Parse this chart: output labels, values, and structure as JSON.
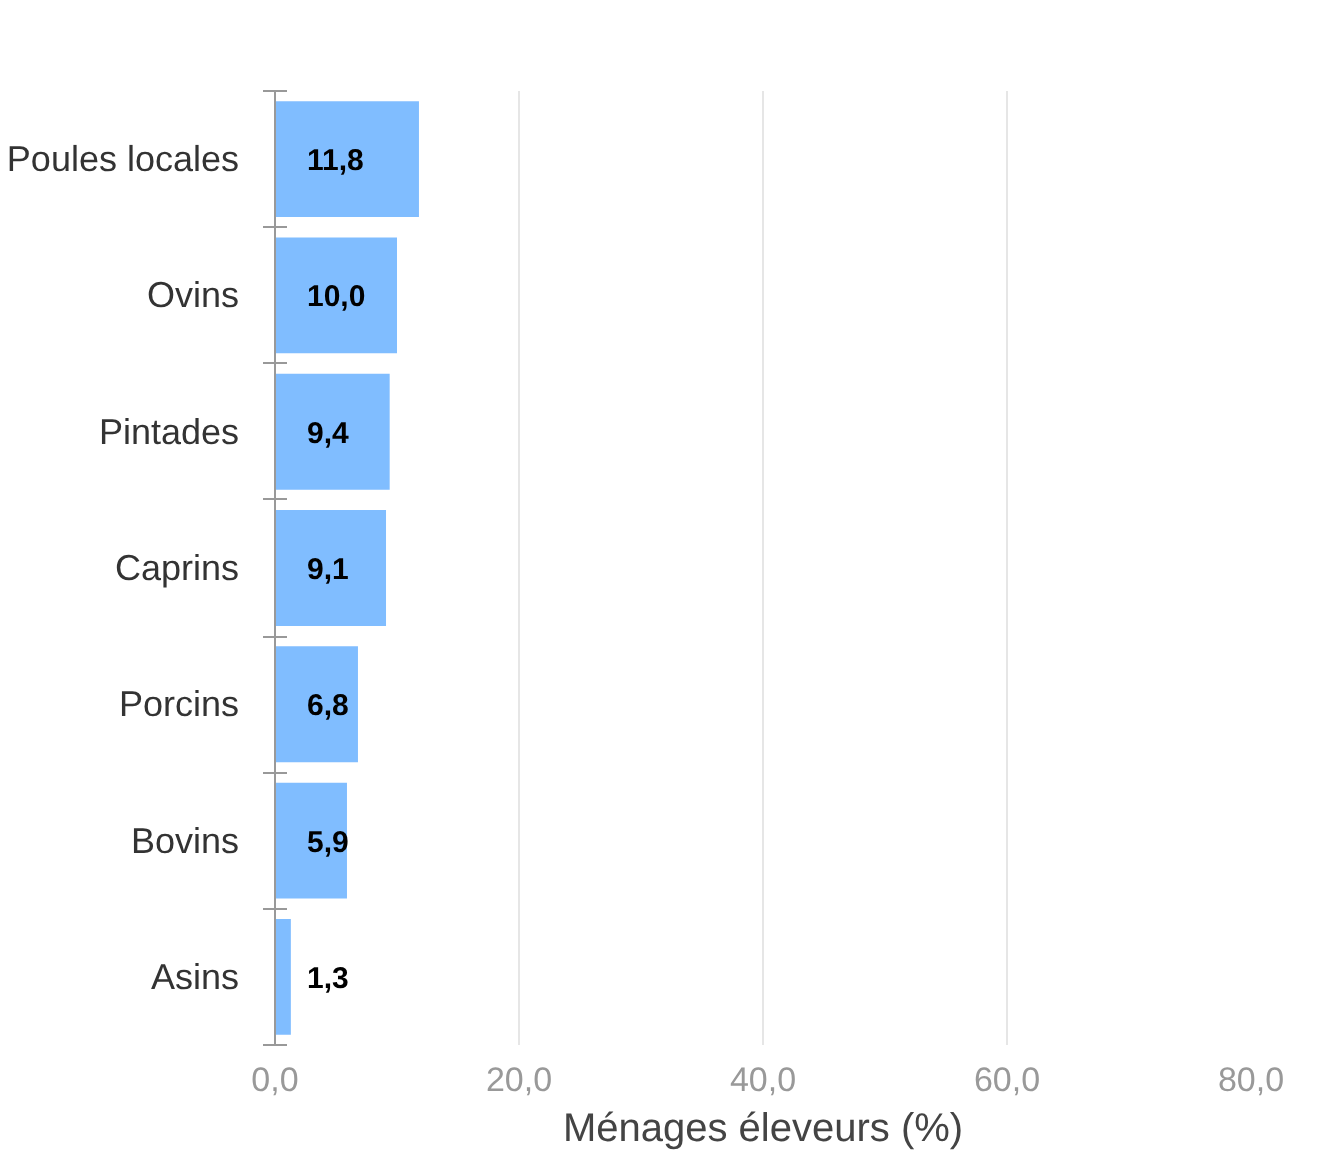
{
  "chart_data": {
    "type": "bar",
    "orientation": "horizontal",
    "xlabel": "Ménages éleveurs (%)",
    "categories": [
      "Poules locales",
      "Ovins",
      "Pintades",
      "Caprins",
      "Porcins",
      "Bovins",
      "Asins"
    ],
    "values": [
      11.8,
      10.0,
      9.4,
      9.1,
      6.8,
      5.9,
      1.3
    ],
    "value_labels": [
      "11,8",
      "10,0",
      "9,4",
      "9,1",
      "6,8",
      "5,9",
      "1,3"
    ],
    "color": "#80bdff",
    "xlim": [
      0,
      80
    ],
    "xticks": [
      {
        "value": 0,
        "label": "0,0"
      },
      {
        "value": 20,
        "label": "20,0"
      },
      {
        "value": 40,
        "label": "40,0"
      },
      {
        "value": 60,
        "label": "60,0"
      },
      {
        "value": 80,
        "label": "80,0"
      }
    ],
    "grid": "x"
  }
}
